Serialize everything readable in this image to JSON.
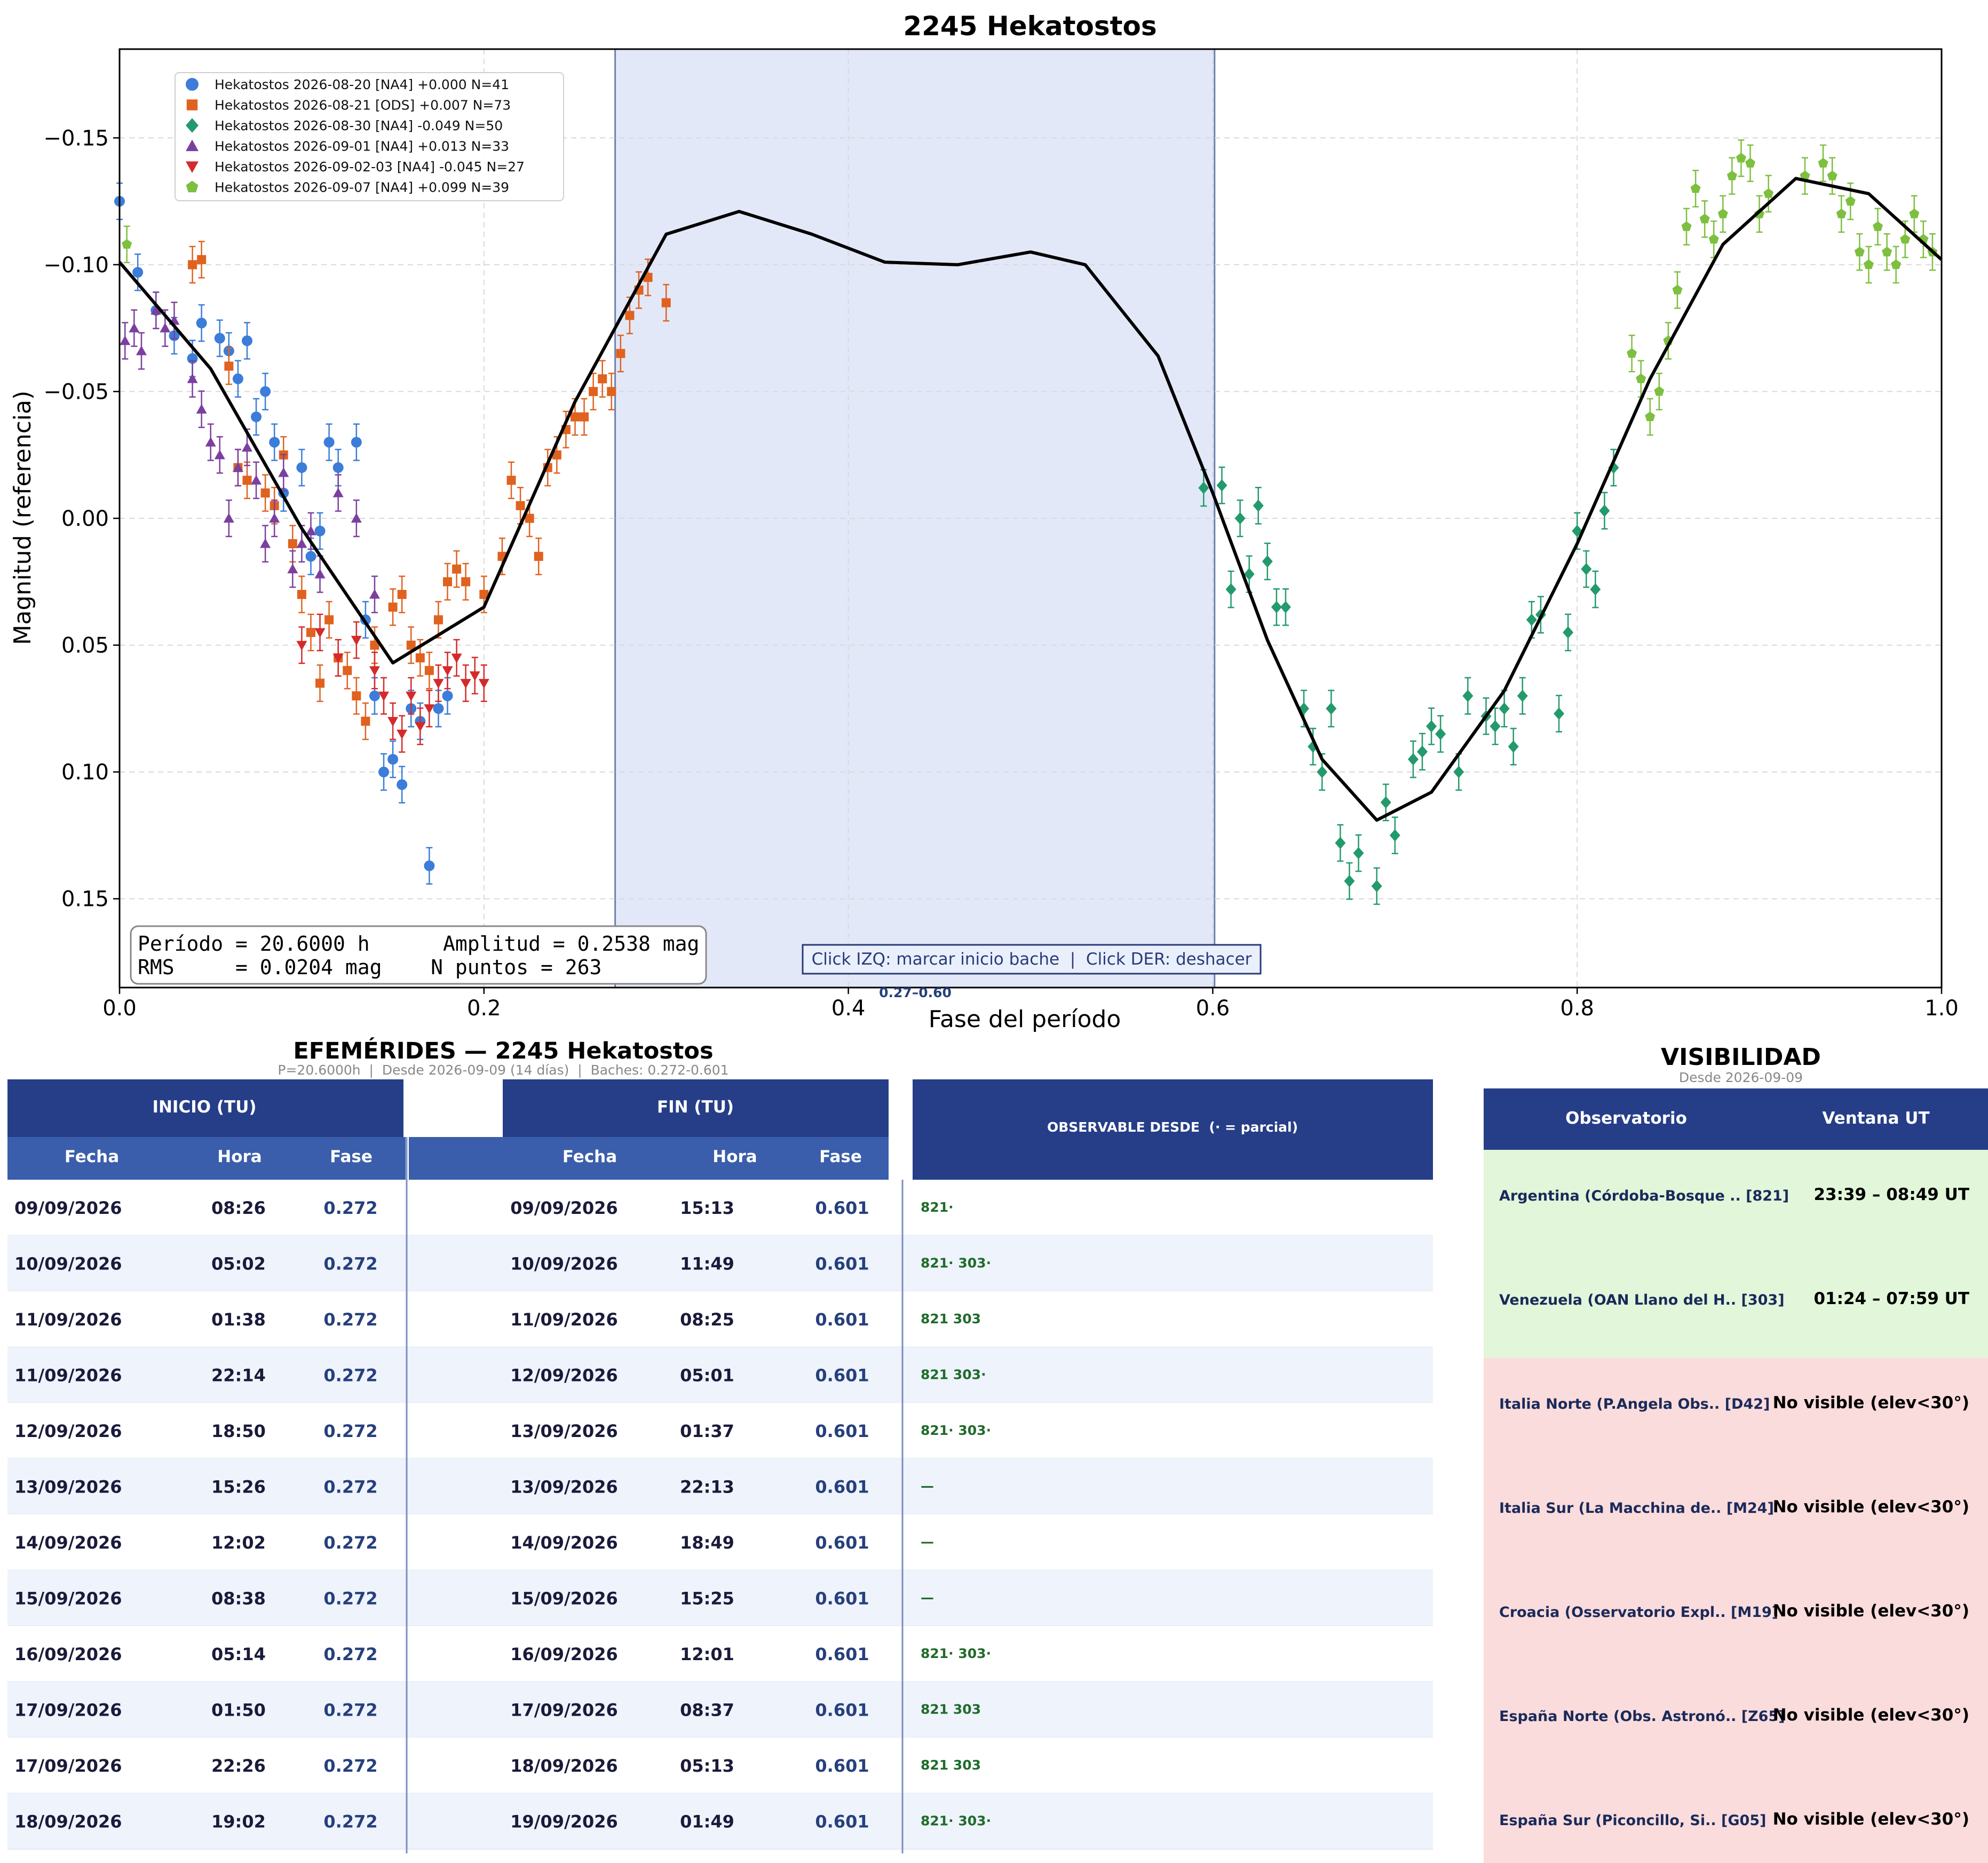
{
  "chart_data": {
    "type": "scatter",
    "title": "2245 Hekatostos",
    "xlabel": "Fase del período",
    "ylabel": "Magnitud (referencia)",
    "xlim": [
      0.0,
      1.0
    ],
    "ylim": [
      0.185,
      -0.185
    ],
    "y_inverted": true,
    "x_ticks": [
      "0.0",
      "0.2",
      "0.4",
      "0.6",
      "0.8",
      "1.0"
    ],
    "y_ticks": [
      "−0.15",
      "−0.10",
      "−0.05",
      "0.00",
      "0.05",
      "0.10",
      "0.15"
    ],
    "grid": true,
    "legend_position": "top-left",
    "gap_band": {
      "x0": 0.272,
      "x1": 0.601,
      "label": "0.27–0.60"
    },
    "click_hint": "Click IZQ: marcar inicio bache  |  Click DER: deshacer",
    "stats": {
      "line1": "Período = 20.6000 h      Amplitud = 0.2538 mag",
      "line2": "RMS     = 0.0204 mag    N puntos = 263"
    },
    "fit_curve": {
      "color": "#000000",
      "points": [
        [
          0.0,
          -0.101
        ],
        [
          0.05,
          -0.059
        ],
        [
          0.1,
          0.004
        ],
        [
          0.15,
          0.057
        ],
        [
          0.2,
          0.035
        ],
        [
          0.25,
          -0.046
        ],
        [
          0.3,
          -0.112
        ],
        [
          0.34,
          -0.121
        ],
        [
          0.38,
          -0.112
        ],
        [
          0.42,
          -0.101
        ],
        [
          0.46,
          -0.1
        ],
        [
          0.5,
          -0.105
        ],
        [
          0.53,
          -0.1
        ],
        [
          0.57,
          -0.064
        ],
        [
          0.6,
          -0.01
        ],
        [
          0.63,
          0.048
        ],
        [
          0.66,
          0.095
        ],
        [
          0.69,
          0.119
        ],
        [
          0.72,
          0.108
        ],
        [
          0.76,
          0.068
        ],
        [
          0.8,
          0.01
        ],
        [
          0.84,
          -0.055
        ],
        [
          0.88,
          -0.108
        ],
        [
          0.92,
          -0.134
        ],
        [
          0.96,
          -0.128
        ],
        [
          1.0,
          -0.102
        ]
      ]
    },
    "series": [
      {
        "name": "Hekatostos 2026-08-20 [NA4] +0.000 N=41",
        "color": "#3b7dd8",
        "marker": "circle",
        "points": [
          [
            0.0,
            -0.125
          ],
          [
            0.01,
            -0.097
          ],
          [
            0.02,
            -0.082
          ],
          [
            0.03,
            -0.072
          ],
          [
            0.04,
            -0.063
          ],
          [
            0.045,
            -0.077
          ],
          [
            0.055,
            -0.071
          ],
          [
            0.06,
            -0.066
          ],
          [
            0.065,
            -0.055
          ],
          [
            0.07,
            -0.07
          ],
          [
            0.075,
            -0.04
          ],
          [
            0.08,
            -0.05
          ],
          [
            0.085,
            -0.03
          ],
          [
            0.09,
            -0.01
          ],
          [
            0.1,
            -0.02
          ],
          [
            0.105,
            0.015
          ],
          [
            0.11,
            0.005
          ],
          [
            0.115,
            -0.03
          ],
          [
            0.12,
            -0.02
          ],
          [
            0.13,
            -0.03
          ],
          [
            0.135,
            0.04
          ],
          [
            0.14,
            0.07
          ],
          [
            0.145,
            0.1
          ],
          [
            0.15,
            0.095
          ],
          [
            0.155,
            0.105
          ],
          [
            0.16,
            0.075
          ],
          [
            0.165,
            0.08
          ],
          [
            0.17,
            0.137
          ],
          [
            0.175,
            0.075
          ],
          [
            0.18,
            0.07
          ]
        ]
      },
      {
        "name": "Hekatostos 2026-08-21 [ODS] +0.007 N=73",
        "color": "#e0621f",
        "marker": "square",
        "points": [
          [
            0.04,
            -0.1
          ],
          [
            0.045,
            -0.102
          ],
          [
            0.06,
            -0.06
          ],
          [
            0.065,
            -0.02
          ],
          [
            0.07,
            -0.015
          ],
          [
            0.08,
            -0.01
          ],
          [
            0.085,
            -0.005
          ],
          [
            0.09,
            -0.025
          ],
          [
            0.095,
            0.01
          ],
          [
            0.1,
            0.03
          ],
          [
            0.105,
            0.045
          ],
          [
            0.11,
            0.065
          ],
          [
            0.115,
            0.04
          ],
          [
            0.12,
            0.055
          ],
          [
            0.125,
            0.06
          ],
          [
            0.13,
            0.07
          ],
          [
            0.135,
            0.08
          ],
          [
            0.14,
            0.05
          ],
          [
            0.15,
            0.035
          ],
          [
            0.155,
            0.03
          ],
          [
            0.16,
            0.05
          ],
          [
            0.165,
            0.055
          ],
          [
            0.17,
            0.06
          ],
          [
            0.175,
            0.04
          ],
          [
            0.18,
            0.025
          ],
          [
            0.185,
            0.02
          ],
          [
            0.19,
            0.025
          ],
          [
            0.2,
            0.03
          ],
          [
            0.21,
            0.015
          ],
          [
            0.215,
            -0.015
          ],
          [
            0.22,
            -0.005
          ],
          [
            0.225,
            0.0
          ],
          [
            0.23,
            0.015
          ],
          [
            0.235,
            -0.02
          ],
          [
            0.24,
            -0.025
          ],
          [
            0.245,
            -0.035
          ],
          [
            0.25,
            -0.04
          ],
          [
            0.255,
            -0.04
          ],
          [
            0.26,
            -0.05
          ],
          [
            0.265,
            -0.055
          ],
          [
            0.27,
            -0.05
          ],
          [
            0.275,
            -0.065
          ],
          [
            0.28,
            -0.08
          ],
          [
            0.285,
            -0.09
          ],
          [
            0.29,
            -0.095
          ],
          [
            0.3,
            -0.085
          ]
        ]
      },
      {
        "name": "Hekatostos 2026-08-30 [NA4] -0.049 N=50",
        "color": "#239a6b",
        "marker": "diamond",
        "points": [
          [
            0.595,
            -0.012
          ],
          [
            0.605,
            -0.013
          ],
          [
            0.61,
            0.028
          ],
          [
            0.615,
            0.0
          ],
          [
            0.62,
            0.022
          ],
          [
            0.625,
            -0.005
          ],
          [
            0.63,
            0.017
          ],
          [
            0.635,
            0.035
          ],
          [
            0.64,
            0.035
          ],
          [
            0.65,
            0.075
          ],
          [
            0.655,
            0.09
          ],
          [
            0.66,
            0.1
          ],
          [
            0.665,
            0.075
          ],
          [
            0.67,
            0.128
          ],
          [
            0.675,
            0.143
          ],
          [
            0.68,
            0.132
          ],
          [
            0.69,
            0.145
          ],
          [
            0.695,
            0.112
          ],
          [
            0.7,
            0.125
          ],
          [
            0.71,
            0.095
          ],
          [
            0.715,
            0.092
          ],
          [
            0.72,
            0.082
          ],
          [
            0.725,
            0.085
          ],
          [
            0.735,
            0.1
          ],
          [
            0.74,
            0.07
          ],
          [
            0.75,
            0.078
          ],
          [
            0.755,
            0.082
          ],
          [
            0.76,
            0.075
          ],
          [
            0.765,
            0.09
          ],
          [
            0.77,
            0.07
          ],
          [
            0.775,
            0.04
          ],
          [
            0.78,
            0.038
          ],
          [
            0.79,
            0.077
          ],
          [
            0.795,
            0.045
          ],
          [
            0.8,
            0.005
          ],
          [
            0.805,
            0.02
          ],
          [
            0.81,
            0.028
          ],
          [
            0.815,
            -0.003
          ],
          [
            0.82,
            -0.02
          ]
        ]
      },
      {
        "name": "Hekatostos 2026-09-01 [NA4] +0.013 N=33",
        "color": "#7b3fa0",
        "marker": "triangle-up",
        "points": [
          [
            0.003,
            -0.07
          ],
          [
            0.008,
            -0.075
          ],
          [
            0.012,
            -0.066
          ],
          [
            0.02,
            -0.082
          ],
          [
            0.025,
            -0.075
          ],
          [
            0.03,
            -0.078
          ],
          [
            0.04,
            -0.055
          ],
          [
            0.045,
            -0.043
          ],
          [
            0.05,
            -0.03
          ],
          [
            0.055,
            -0.025
          ],
          [
            0.06,
            0.0
          ],
          [
            0.065,
            -0.02
          ],
          [
            0.07,
            -0.028
          ],
          [
            0.075,
            -0.015
          ],
          [
            0.08,
            0.01
          ],
          [
            0.085,
            0.0
          ],
          [
            0.09,
            -0.018
          ],
          [
            0.095,
            0.02
          ],
          [
            0.1,
            0.01
          ],
          [
            0.105,
            0.005
          ],
          [
            0.11,
            0.022
          ],
          [
            0.12,
            -0.01
          ],
          [
            0.13,
            0.0
          ],
          [
            0.14,
            0.03
          ]
        ]
      },
      {
        "name": "Hekatostos 2026-09-02-03 [NA4] -0.045 N=27",
        "color": "#d42a2a",
        "marker": "triangle-down",
        "points": [
          [
            0.1,
            0.05
          ],
          [
            0.11,
            0.045
          ],
          [
            0.12,
            0.055
          ],
          [
            0.13,
            0.048
          ],
          [
            0.14,
            0.06
          ],
          [
            0.145,
            0.07
          ],
          [
            0.15,
            0.08
          ],
          [
            0.155,
            0.085
          ],
          [
            0.16,
            0.07
          ],
          [
            0.165,
            0.082
          ],
          [
            0.17,
            0.075
          ],
          [
            0.175,
            0.065
          ],
          [
            0.18,
            0.06
          ],
          [
            0.185,
            0.055
          ],
          [
            0.19,
            0.065
          ],
          [
            0.195,
            0.062
          ],
          [
            0.2,
            0.065
          ]
        ]
      },
      {
        "name": "Hekatostos 2026-09-07 [NA4] +0.099 N=39",
        "color": "#7dbf3f",
        "marker": "pentagon",
        "points": [
          [
            0.004,
            -0.108
          ],
          [
            0.83,
            -0.065
          ],
          [
            0.835,
            -0.055
          ],
          [
            0.84,
            -0.04
          ],
          [
            0.845,
            -0.05
          ],
          [
            0.85,
            -0.07
          ],
          [
            0.855,
            -0.09
          ],
          [
            0.86,
            -0.115
          ],
          [
            0.865,
            -0.13
          ],
          [
            0.87,
            -0.118
          ],
          [
            0.875,
            -0.11
          ],
          [
            0.88,
            -0.12
          ],
          [
            0.885,
            -0.135
          ],
          [
            0.89,
            -0.142
          ],
          [
            0.895,
            -0.14
          ],
          [
            0.9,
            -0.12
          ],
          [
            0.905,
            -0.128
          ],
          [
            0.925,
            -0.135
          ],
          [
            0.935,
            -0.14
          ],
          [
            0.94,
            -0.135
          ],
          [
            0.945,
            -0.12
          ],
          [
            0.95,
            -0.125
          ],
          [
            0.955,
            -0.105
          ],
          [
            0.96,
            -0.1
          ],
          [
            0.965,
            -0.115
          ],
          [
            0.97,
            -0.105
          ],
          [
            0.975,
            -0.1
          ],
          [
            0.98,
            -0.11
          ],
          [
            0.985,
            -0.12
          ],
          [
            0.99,
            -0.11
          ],
          [
            0.995,
            -0.105
          ]
        ]
      }
    ]
  },
  "ephemerides": {
    "title": "EFEMÉRIDES — 2245 Hekatostos",
    "subtitle": "P=20.6000h  |  Desde 2026-09-09 (14 días)  |  Baches: 0.272-0.601",
    "inicio_header": "INICIO (TU)",
    "fin_header": "FIN (TU)",
    "observable_header": "OBSERVABLE DESDE  (· = parcial)",
    "col_fecha": "Fecha",
    "col_hora": "Hora",
    "col_fase": "Fase",
    "rows": [
      {
        "d1": "09/09/2026",
        "h1": "08:26",
        "f1": "0.272",
        "d2": "09/09/2026",
        "h2": "15:13",
        "f2": "0.601",
        "obs": "821·"
      },
      {
        "d1": "10/09/2026",
        "h1": "05:02",
        "f1": "0.272",
        "d2": "10/09/2026",
        "h2": "11:49",
        "f2": "0.601",
        "obs": "821· 303·"
      },
      {
        "d1": "11/09/2026",
        "h1": "01:38",
        "f1": "0.272",
        "d2": "11/09/2026",
        "h2": "08:25",
        "f2": "0.601",
        "obs": "821 303"
      },
      {
        "d1": "11/09/2026",
        "h1": "22:14",
        "f1": "0.272",
        "d2": "12/09/2026",
        "h2": "05:01",
        "f2": "0.601",
        "obs": "821 303·"
      },
      {
        "d1": "12/09/2026",
        "h1": "18:50",
        "f1": "0.272",
        "d2": "13/09/2026",
        "h2": "01:37",
        "f2": "0.601",
        "obs": "821· 303·"
      },
      {
        "d1": "13/09/2026",
        "h1": "15:26",
        "f1": "0.272",
        "d2": "13/09/2026",
        "h2": "22:13",
        "f2": "0.601",
        "obs": "—"
      },
      {
        "d1": "14/09/2026",
        "h1": "12:02",
        "f1": "0.272",
        "d2": "14/09/2026",
        "h2": "18:49",
        "f2": "0.601",
        "obs": "—"
      },
      {
        "d1": "15/09/2026",
        "h1": "08:38",
        "f1": "0.272",
        "d2": "15/09/2026",
        "h2": "15:25",
        "f2": "0.601",
        "obs": "—"
      },
      {
        "d1": "16/09/2026",
        "h1": "05:14",
        "f1": "0.272",
        "d2": "16/09/2026",
        "h2": "12:01",
        "f2": "0.601",
        "obs": "821· 303·"
      },
      {
        "d1": "17/09/2026",
        "h1": "01:50",
        "f1": "0.272",
        "d2": "17/09/2026",
        "h2": "08:37",
        "f2": "0.601",
        "obs": "821 303"
      },
      {
        "d1": "17/09/2026",
        "h1": "22:26",
        "f1": "0.272",
        "d2": "18/09/2026",
        "h2": "05:13",
        "f2": "0.601",
        "obs": "821 303"
      },
      {
        "d1": "18/09/2026",
        "h1": "19:02",
        "f1": "0.272",
        "d2": "19/09/2026",
        "h2": "01:49",
        "f2": "0.601",
        "obs": "821· 303·"
      }
    ]
  },
  "visibility": {
    "title": "VISIBILIDAD",
    "subtitle": "Desde 2026-09-09",
    "col_obs": "Observatorio",
    "col_win": "Ventana UT",
    "visible_bg": "#e2f6da",
    "not_visible_bg": "#fbdcdc",
    "rows": [
      {
        "name": "Argentina (Córdoba-Bosque .. [821]",
        "window": "23:39 – 08:49 UT",
        "visible": true
      },
      {
        "name": "Venezuela (OAN Llano del H.. [303]",
        "window": "01:24 – 07:59 UT",
        "visible": true
      },
      {
        "name": "Italia Norte (P.Angela Obs.. [D42]",
        "window": "No visible (elev<30°)",
        "visible": false
      },
      {
        "name": "Italia Sur (La Macchina de.. [M24]",
        "window": "No visible (elev<30°)",
        "visible": false
      },
      {
        "name": "Croacia (Osservatorio Expl.. [M19]",
        "window": "No visible (elev<30°)",
        "visible": false
      },
      {
        "name": "España Norte (Obs. Astronó.. [Z65]",
        "window": "No visible (elev<30°)",
        "visible": false
      },
      {
        "name": "España Sur (Piconcillo, Si.. [G05]",
        "window": "No visible (elev<30°)",
        "visible": false
      }
    ]
  }
}
